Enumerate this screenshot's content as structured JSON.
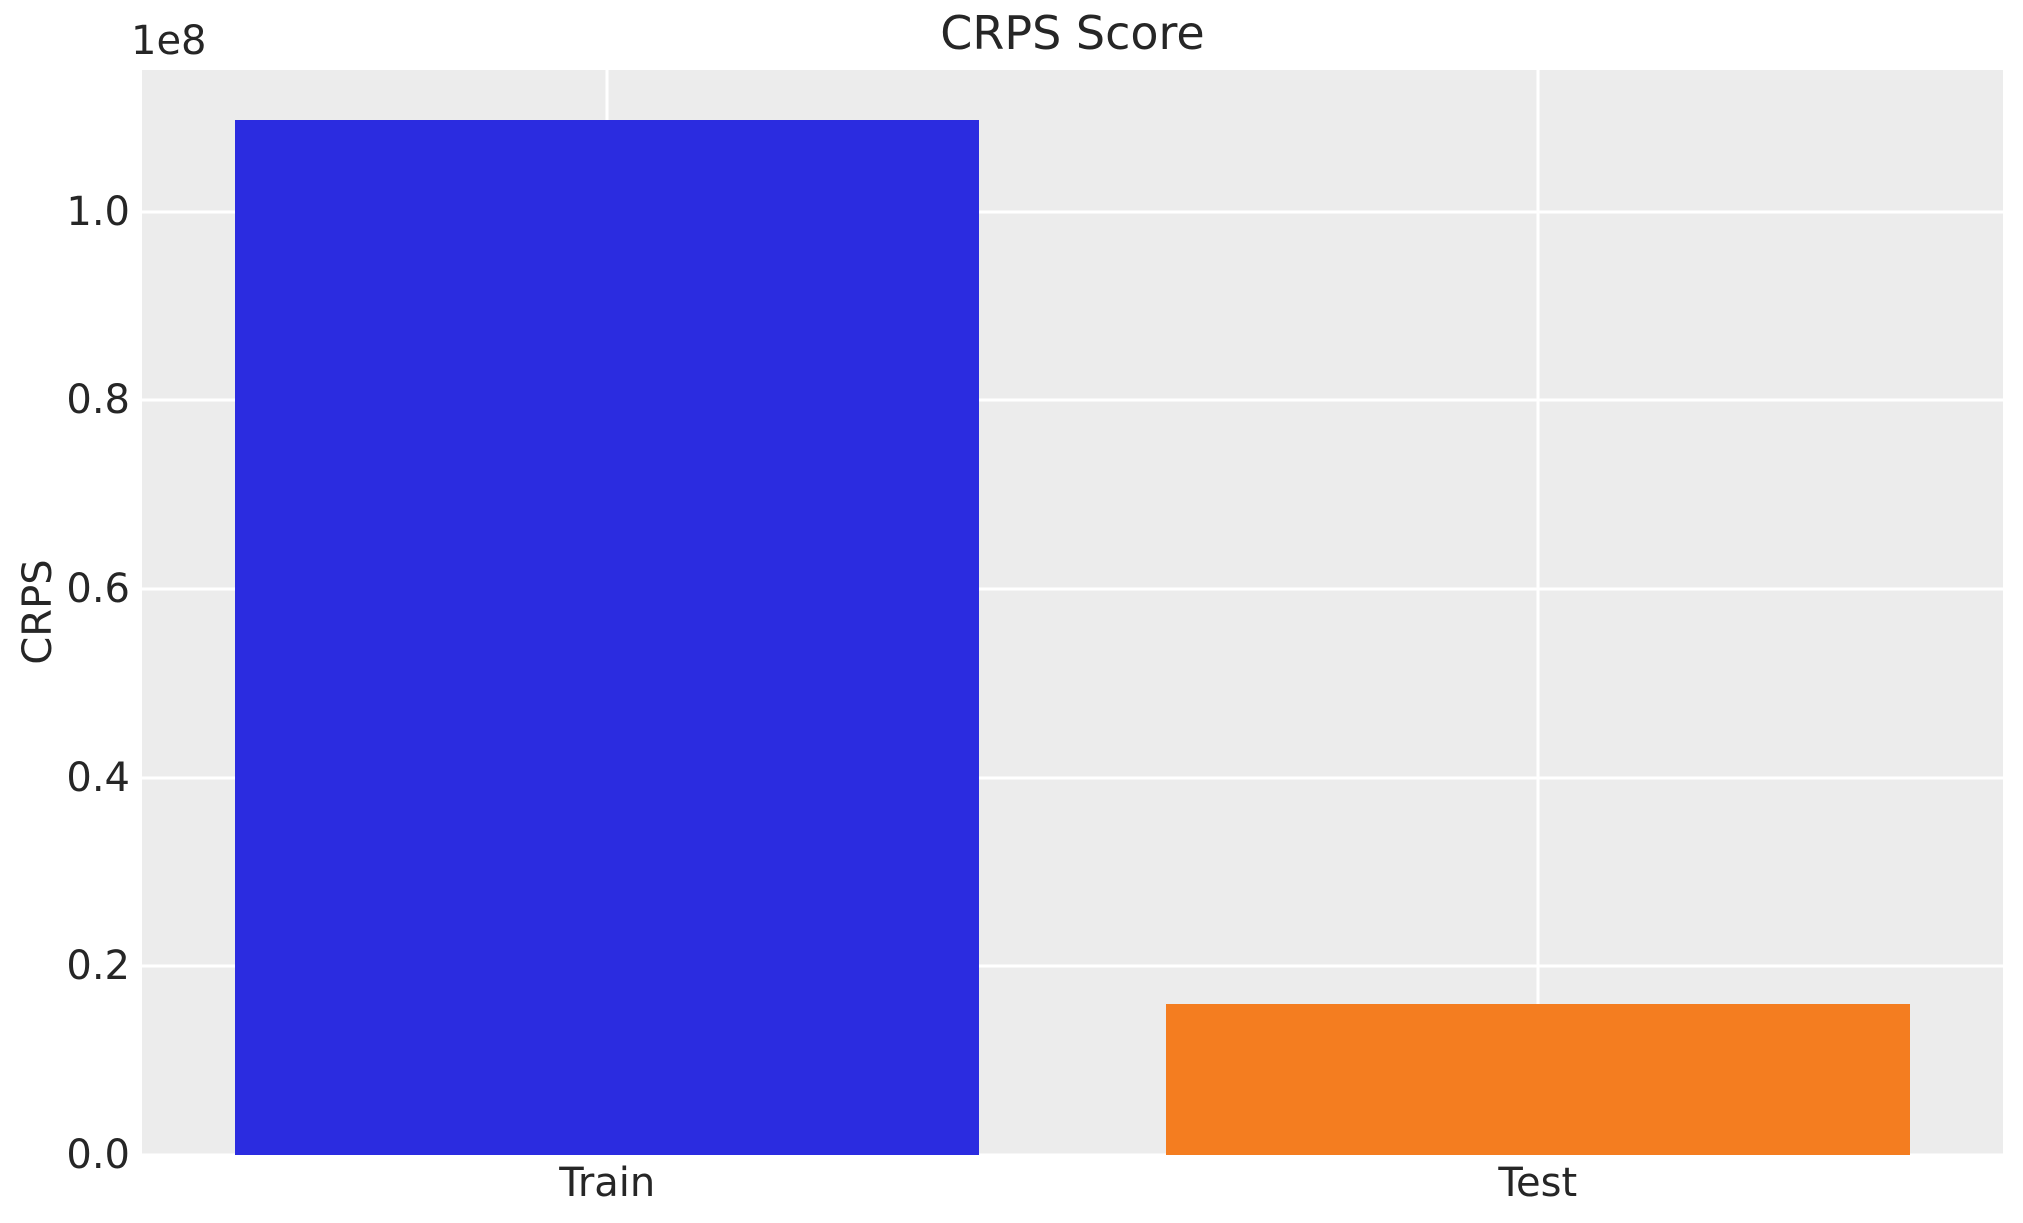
{
  "figure": {
    "background_color": "#ffffff",
    "axes_background_color": "#ececec",
    "grid_color": "#ffffff",
    "text_color": "#262626"
  },
  "chart_data": {
    "type": "bar",
    "title": "CRPS Score",
    "xlabel": "",
    "ylabel": "CRPS",
    "y_offset_label": "1e8",
    "categories": [
      "Train",
      "Test"
    ],
    "values": [
      109700000,
      16000000
    ],
    "bar_colors": [
      "#2b2ce0",
      "#f47d20"
    ],
    "ylim": [
      0,
      115000000
    ],
    "yticks": [
      0,
      20000000,
      40000000,
      60000000,
      80000000,
      100000000
    ],
    "ytick_labels": [
      "0.0",
      "0.2",
      "0.4",
      "0.6",
      "0.8",
      "1.0"
    ],
    "grid": true,
    "legend_position": null,
    "bar_width_fraction": 0.8
  }
}
